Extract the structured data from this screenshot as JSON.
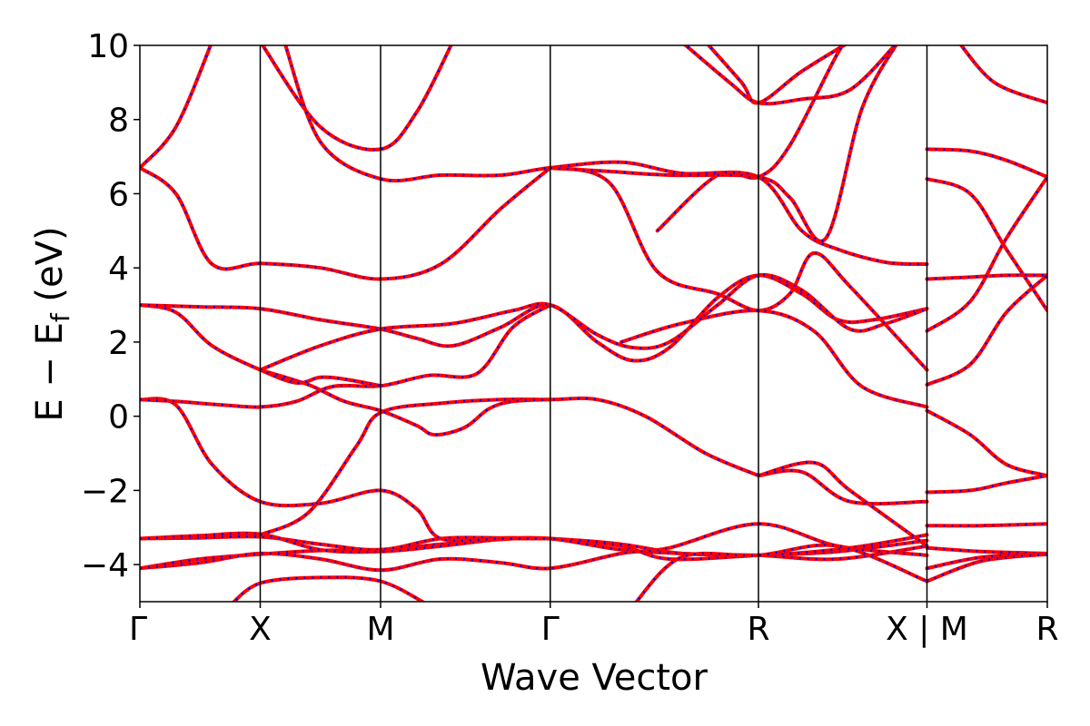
{
  "chart_data": {
    "type": "line",
    "title": "",
    "xlabel": "Wave Vector",
    "ylabel_parts": {
      "main": "E − E",
      "sub": "f",
      "unit": " (eV)"
    },
    "ylim": [
      -5,
      10
    ],
    "yticks": [
      -4,
      -2,
      0,
      2,
      4,
      6,
      8,
      10
    ],
    "ytick_labels": [
      "−4",
      "−2",
      "0",
      "2",
      "4",
      "6",
      "8",
      "10"
    ],
    "k_path_positions": [
      0,
      1,
      2,
      3.41,
      5.14,
      6.54,
      7.54
    ],
    "k_labels": [
      {
        "pos": 0,
        "label": "Γ"
      },
      {
        "pos": 1,
        "label": "X"
      },
      {
        "pos": 2,
        "label": "M"
      },
      {
        "pos": 3.41,
        "label": "Γ"
      },
      {
        "pos": 5.14,
        "label": "R"
      },
      {
        "pos": 6.54,
        "label": "X | M"
      },
      {
        "pos": 7.54,
        "label": "R"
      }
    ],
    "series_style": [
      {
        "color": "#ff0000",
        "dash": "none"
      },
      {
        "color": "#0000ff",
        "dash": "dotted"
      }
    ],
    "bands": [
      [
        [
          0,
          -4.1
        ],
        [
          0.5,
          -3.85
        ],
        [
          1,
          -3.72
        ],
        [
          1.5,
          -3.62
        ],
        [
          2,
          -3.6
        ],
        [
          2.5,
          -3.45
        ],
        [
          3,
          -3.32
        ],
        [
          3.41,
          -3.3
        ],
        [
          4,
          -3.5
        ],
        [
          4.4,
          -3.85
        ],
        [
          5.14,
          -3.75
        ],
        [
          5.8,
          -3.65
        ],
        [
          6.54,
          -3.35
        ]
      ],
      [
        [
          0,
          -3.3
        ],
        [
          0.5,
          -3.28
        ],
        [
          1,
          -3.25
        ],
        [
          1.5,
          -3.45
        ],
        [
          2,
          -3.6
        ],
        [
          2.5,
          -3.3
        ],
        [
          3,
          -3.28
        ],
        [
          3.41,
          -3.3
        ],
        [
          4,
          -3.45
        ],
        [
          4.5,
          -3.7
        ],
        [
          5.14,
          -3.75
        ],
        [
          5.8,
          -3.85
        ],
        [
          6.54,
          -3.5
        ]
      ],
      [
        [
          0,
          -3.3
        ],
        [
          0.5,
          -3.22
        ],
        [
          1,
          -3.18
        ],
        [
          1.5,
          -3.6
        ],
        [
          2,
          -3.65
        ],
        [
          2.5,
          -3.5
        ],
        [
          3,
          -3.32
        ],
        [
          3.41,
          -3.3
        ],
        [
          4,
          -3.6
        ],
        [
          4.5,
          -3.7
        ],
        [
          5.14,
          -3.75
        ],
        [
          5.9,
          -3.55
        ],
        [
          6.54,
          -3.2
        ]
      ],
      [
        [
          0,
          -4.1
        ],
        [
          0.5,
          -3.95
        ],
        [
          1,
          -3.7
        ],
        [
          1.5,
          -3.85
        ],
        [
          2,
          -4.15
        ],
        [
          2.5,
          -3.85
        ],
        [
          3,
          -3.95
        ],
        [
          3.41,
          -4.1
        ],
        [
          4,
          -3.7
        ],
        [
          4.4,
          -3.55
        ],
        [
          5.14,
          -2.9
        ],
        [
          5.8,
          -3.5
        ],
        [
          6.54,
          -3.75
        ]
      ],
      [
        [
          0,
          0.45
        ],
        [
          0.3,
          0.3
        ],
        [
          0.6,
          -1.3
        ],
        [
          1,
          -2.3
        ],
        [
          1.5,
          -2.35
        ],
        [
          2,
          -2.0
        ],
        [
          2.3,
          -2.5
        ],
        [
          2.5,
          -3.3
        ],
        [
          3,
          -3.3
        ],
        [
          3.41,
          -3.3
        ]
      ],
      [
        [
          0,
          0.45
        ],
        [
          0.3,
          0.4
        ],
        [
          0.7,
          0.3
        ],
        [
          1,
          0.25
        ],
        [
          1.3,
          0.4
        ],
        [
          1.6,
          0.8
        ],
        [
          2,
          0.82
        ],
        [
          2.4,
          1.1
        ],
        [
          2.8,
          1.15
        ],
        [
          3.1,
          2.4
        ],
        [
          3.41,
          3.0
        ]
      ],
      [
        [
          1,
          -3.2
        ],
        [
          1.4,
          -2.6
        ],
        [
          1.8,
          -0.8
        ],
        [
          2,
          0.1
        ],
        [
          2.5,
          0.35
        ],
        [
          3,
          0.45
        ],
        [
          3.41,
          0.45
        ],
        [
          3.8,
          0.45
        ],
        [
          4.2,
          0.0
        ],
        [
          4.7,
          -1.0
        ],
        [
          5.14,
          -1.6
        ]
      ],
      [
        [
          1,
          1.25
        ],
        [
          1.4,
          0.85
        ],
        [
          1.7,
          0.4
        ],
        [
          2,
          0.15
        ],
        [
          2.3,
          -0.25
        ],
        [
          2.45,
          -0.5
        ],
        [
          2.7,
          -0.3
        ],
        [
          2.9,
          0.2
        ],
        [
          3.1,
          0.4
        ],
        [
          3.41,
          0.45
        ]
      ],
      [
        [
          0,
          3.0
        ],
        [
          0.3,
          2.8
        ],
        [
          0.6,
          1.9
        ],
        [
          1,
          1.25
        ],
        [
          1.3,
          0.9
        ],
        [
          1.5,
          1.05
        ],
        [
          1.7,
          1.0
        ],
        [
          2,
          0.82
        ]
      ],
      [
        [
          0,
          3.0
        ],
        [
          0.5,
          2.95
        ],
        [
          1,
          2.9
        ],
        [
          1.5,
          2.6
        ],
        [
          2,
          2.35
        ],
        [
          2.3,
          2.1
        ],
        [
          2.6,
          1.9
        ],
        [
          3,
          2.4
        ],
        [
          3.41,
          3.0
        ],
        [
          3.8,
          2.0
        ],
        [
          4.1,
          1.5
        ],
        [
          4.4,
          1.85
        ],
        [
          4.8,
          3.2
        ],
        [
          5.14,
          3.8
        ],
        [
          5.5,
          3.3
        ],
        [
          5.8,
          2.6
        ],
        [
          6.1,
          2.6
        ],
        [
          6.54,
          2.9
        ]
      ],
      [
        [
          1,
          1.25
        ],
        [
          1.5,
          1.9
        ],
        [
          2,
          2.35
        ],
        [
          2.6,
          2.5
        ],
        [
          3.1,
          2.85
        ],
        [
          3.41,
          3.0
        ],
        [
          3.8,
          2.2
        ],
        [
          4.1,
          1.85
        ],
        [
          4.4,
          2.0
        ],
        [
          4.8,
          3.0
        ],
        [
          5.14,
          3.8
        ],
        [
          5.5,
          3.4
        ],
        [
          5.9,
          2.35
        ],
        [
          6.2,
          2.5
        ],
        [
          6.54,
          2.9
        ]
      ],
      [
        [
          0,
          6.7
        ],
        [
          0.3,
          6.0
        ],
        [
          0.6,
          4.1
        ],
        [
          1,
          4.12
        ],
        [
          1.5,
          4.0
        ],
        [
          2,
          3.7
        ],
        [
          2.5,
          4.1
        ],
        [
          3,
          5.6
        ],
        [
          3.41,
          6.7
        ]
      ],
      [
        [
          0,
          6.7
        ],
        [
          0.3,
          7.8
        ],
        [
          0.6,
          10.1
        ]
      ],
      [
        [
          1,
          10.1
        ],
        [
          1.5,
          7.8
        ],
        [
          2,
          7.2
        ],
        [
          2.3,
          8.2
        ],
        [
          2.6,
          10.1
        ]
      ],
      [
        [
          1.2,
          10.1
        ],
        [
          1.5,
          7.4
        ],
        [
          2,
          6.4
        ],
        [
          2.5,
          6.5
        ],
        [
          3,
          6.5
        ],
        [
          3.41,
          6.7
        ],
        [
          4,
          6.85
        ],
        [
          4.5,
          6.55
        ],
        [
          5.14,
          6.45
        ],
        [
          5.5,
          5.0
        ],
        [
          5.8,
          4.5
        ],
        [
          6.2,
          4.15
        ],
        [
          6.54,
          4.1
        ]
      ],
      [
        [
          3.41,
          6.7
        ],
        [
          3.9,
          6.6
        ],
        [
          4.4,
          6.5
        ],
        [
          5.14,
          6.45
        ],
        [
          5.4,
          5.9
        ],
        [
          5.7,
          4.8
        ],
        [
          6.0,
          8.3
        ],
        [
          6.3,
          10.1
        ]
      ],
      [
        [
          3.41,
          6.7
        ],
        [
          3.9,
          6.3
        ],
        [
          4.3,
          3.9
        ],
        [
          4.8,
          3.3
        ],
        [
          5.14,
          2.85
        ],
        [
          5.4,
          3.3
        ],
        [
          5.6,
          4.4
        ],
        [
          5.9,
          3.5
        ],
        [
          6.54,
          1.25
        ]
      ],
      [
        [
          4.7,
          10.1
        ],
        [
          5.0,
          9.0
        ],
        [
          5.14,
          8.45
        ],
        [
          5.5,
          9.3
        ],
        [
          5.9,
          10.1
        ]
      ],
      [
        [
          4.5,
          10.1
        ],
        [
          4.9,
          9.0
        ],
        [
          5.14,
          8.45
        ],
        [
          5.5,
          8.55
        ],
        [
          5.9,
          8.8
        ],
        [
          6.3,
          10.1
        ]
      ],
      [
        [
          4.1,
          -5.1
        ],
        [
          4.5,
          -3.8
        ],
        [
          5.14,
          -3.75
        ],
        [
          5.8,
          -3.5
        ],
        [
          6.54,
          -4.45
        ]
      ],
      [
        [
          0.75,
          -5.1
        ],
        [
          1,
          -4.5
        ],
        [
          1.5,
          -4.35
        ],
        [
          2,
          -4.45
        ],
        [
          2.4,
          -5.1
        ]
      ],
      [
        [
          4.3,
          5.0
        ],
        [
          4.8,
          6.5
        ],
        [
          5.14,
          6.45
        ],
        [
          5.4,
          7.3
        ],
        [
          5.8,
          9.8
        ],
        [
          5.9,
          10.1
        ]
      ],
      [
        [
          4.0,
          2.0
        ],
        [
          4.5,
          2.5
        ],
        [
          5.14,
          2.85
        ],
        [
          5.6,
          2.3
        ],
        [
          6.0,
          0.8
        ],
        [
          6.54,
          0.25
        ]
      ],
      [
        [
          5.14,
          -1.6
        ],
        [
          5.5,
          -1.5
        ],
        [
          5.9,
          -2.3
        ],
        [
          6.54,
          -2.3
        ]
      ],
      [
        [
          5.14,
          -1.6
        ],
        [
          5.6,
          -1.25
        ],
        [
          5.9,
          -2.0
        ],
        [
          6.54,
          -3.5
        ]
      ],
      [
        [
          6.54,
          7.2
        ],
        [
          6.9,
          7.15
        ],
        [
          7.2,
          6.9
        ],
        [
          7.54,
          6.45
        ]
      ],
      [
        [
          6.54,
          6.4
        ],
        [
          6.9,
          6.0
        ],
        [
          7.2,
          4.5
        ],
        [
          7.54,
          2.85
        ]
      ],
      [
        [
          6.54,
          3.7
        ],
        [
          6.9,
          3.75
        ],
        [
          7.2,
          3.8
        ],
        [
          7.54,
          3.8
        ]
      ],
      [
        [
          6.54,
          2.3
        ],
        [
          6.9,
          3.1
        ],
        [
          7.2,
          4.8
        ],
        [
          7.54,
          6.45
        ]
      ],
      [
        [
          6.54,
          0.85
        ],
        [
          6.9,
          1.4
        ],
        [
          7.2,
          2.8
        ],
        [
          7.54,
          3.8
        ]
      ],
      [
        [
          6.54,
          0.15
        ],
        [
          6.9,
          -0.5
        ],
        [
          7.2,
          -1.3
        ],
        [
          7.54,
          -1.6
        ]
      ],
      [
        [
          6.54,
          -2.05
        ],
        [
          6.9,
          -2.0
        ],
        [
          7.2,
          -1.8
        ],
        [
          7.54,
          -1.6
        ]
      ],
      [
        [
          6.54,
          -2.95
        ],
        [
          7.0,
          -2.95
        ],
        [
          7.54,
          -2.9
        ]
      ],
      [
        [
          6.54,
          -3.55
        ],
        [
          7.0,
          -3.65
        ],
        [
          7.54,
          -3.7
        ]
      ],
      [
        [
          6.54,
          -4.1
        ],
        [
          7.0,
          -3.8
        ],
        [
          7.54,
          -3.72
        ]
      ],
      [
        [
          6.54,
          -4.45
        ],
        [
          7.0,
          -3.9
        ],
        [
          7.54,
          -3.72
        ]
      ],
      [
        [
          6.8,
          10.1
        ],
        [
          7.1,
          9.0
        ],
        [
          7.54,
          8.45
        ]
      ]
    ]
  }
}
